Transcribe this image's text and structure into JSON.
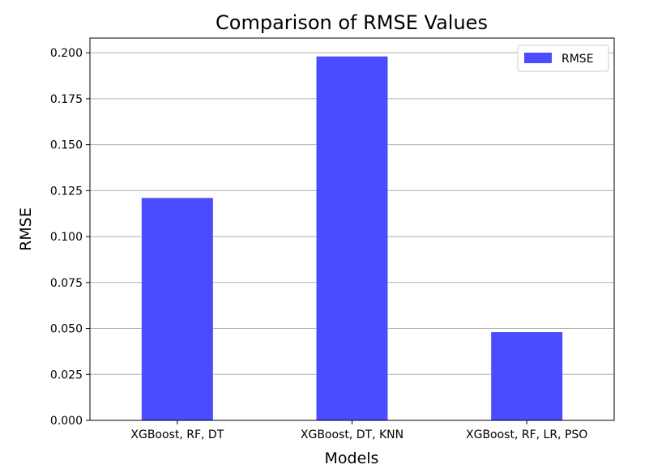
{
  "chart_data": {
    "type": "bar",
    "title": "Comparison of RMSE Values",
    "xlabel": "Models",
    "ylabel": "RMSE",
    "categories": [
      "XGBoost, RF, DT",
      "XGBoost, DT, KNN",
      "XGBoost, RF, LR, PSO"
    ],
    "series": [
      {
        "name": "RMSE",
        "color": "#4b4bff",
        "values": [
          0.121,
          0.198,
          0.048
        ]
      }
    ],
    "ylim": [
      0,
      0.208
    ],
    "yticks": [
      "0.000",
      "0.025",
      "0.050",
      "0.075",
      "0.100",
      "0.125",
      "0.150",
      "0.175",
      "0.200"
    ],
    "grid": "y-major",
    "legend": "top-right"
  }
}
